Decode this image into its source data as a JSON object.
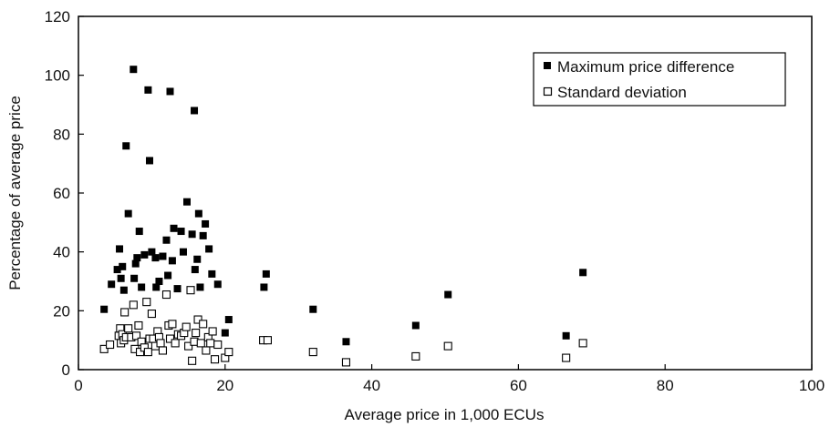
{
  "chart_data": {
    "type": "scatter",
    "xlabel": "Average price in 1,000 ECUs",
    "ylabel": "Percentage of average price",
    "xlim": [
      0,
      100
    ],
    "ylim": [
      0,
      120
    ],
    "x_ticks": [
      "0",
      "20",
      "40",
      "60",
      "80",
      "100"
    ],
    "y_ticks": [
      "0",
      "20",
      "40",
      "60",
      "80",
      "100",
      "120"
    ],
    "grid": false,
    "legend_position": "top-right",
    "series": [
      {
        "name": "Maximum price difference",
        "marker": "filled-square",
        "color": "#000000",
        "points": [
          [
            3.5,
            20.5
          ],
          [
            4.5,
            29
          ],
          [
            5.3,
            34
          ],
          [
            5.6,
            41
          ],
          [
            5.8,
            31
          ],
          [
            6,
            35
          ],
          [
            6.2,
            27
          ],
          [
            6.5,
            76
          ],
          [
            6.8,
            53
          ],
          [
            7.5,
            102
          ],
          [
            7.6,
            31
          ],
          [
            7.8,
            36
          ],
          [
            8,
            38
          ],
          [
            8.3,
            47
          ],
          [
            8.6,
            28
          ],
          [
            9,
            39
          ],
          [
            9.5,
            95
          ],
          [
            9.7,
            71
          ],
          [
            10,
            40
          ],
          [
            10.5,
            38
          ],
          [
            10.6,
            28
          ],
          [
            11,
            30
          ],
          [
            11.5,
            38.5
          ],
          [
            12,
            44
          ],
          [
            12.2,
            32
          ],
          [
            12.5,
            94.5
          ],
          [
            12.8,
            37
          ],
          [
            13,
            48
          ],
          [
            13.5,
            27.5
          ],
          [
            14,
            47
          ],
          [
            14.3,
            40
          ],
          [
            14.8,
            57
          ],
          [
            15.5,
            46
          ],
          [
            15.8,
            88
          ],
          [
            15.9,
            34
          ],
          [
            16.2,
            37.5
          ],
          [
            16.4,
            53
          ],
          [
            16.6,
            28
          ],
          [
            17,
            45.5
          ],
          [
            17.3,
            49.5
          ],
          [
            17.8,
            41
          ],
          [
            18.2,
            32.5
          ],
          [
            19,
            29
          ],
          [
            20,
            12.5
          ],
          [
            20.5,
            17
          ],
          [
            25.3,
            28
          ],
          [
            25.6,
            32.5
          ],
          [
            32,
            20.5
          ],
          [
            36.5,
            9.5
          ],
          [
            46,
            15
          ],
          [
            50.4,
            25.5
          ],
          [
            66.5,
            11.5
          ],
          [
            68.8,
            33
          ]
        ]
      },
      {
        "name": "Standard deviation",
        "marker": "open-square",
        "color": "#000000",
        "points": [
          [
            3.5,
            7
          ],
          [
            4.3,
            8.5
          ],
          [
            5.5,
            11.5
          ],
          [
            5.7,
            14
          ],
          [
            5.8,
            9
          ],
          [
            6,
            12
          ],
          [
            6.2,
            10
          ],
          [
            6.3,
            19.5
          ],
          [
            6.5,
            11
          ],
          [
            6.8,
            14
          ],
          [
            7.2,
            11
          ],
          [
            7.5,
            22
          ],
          [
            7.7,
            7
          ],
          [
            7.9,
            11.5
          ],
          [
            8.2,
            15
          ],
          [
            8.4,
            6
          ],
          [
            8.6,
            9.5
          ],
          [
            9,
            7.5
          ],
          [
            9.3,
            23
          ],
          [
            9.5,
            6
          ],
          [
            9.7,
            10.5
          ],
          [
            10,
            19
          ],
          [
            10.2,
            10.5
          ],
          [
            10.5,
            8
          ],
          [
            10.8,
            13
          ],
          [
            11,
            11
          ],
          [
            11.2,
            9
          ],
          [
            11.5,
            6.5
          ],
          [
            12,
            25.5
          ],
          [
            12.3,
            15
          ],
          [
            12.5,
            10.5
          ],
          [
            12.8,
            15.5
          ],
          [
            13.2,
            9
          ],
          [
            13.6,
            12
          ],
          [
            14,
            11.5
          ],
          [
            14.4,
            12.5
          ],
          [
            14.7,
            14.5
          ],
          [
            15,
            8
          ],
          [
            15.3,
            27
          ],
          [
            15.5,
            3
          ],
          [
            15.8,
            9.5
          ],
          [
            16,
            12.5
          ],
          [
            16.3,
            17
          ],
          [
            16.7,
            9
          ],
          [
            17,
            15.5
          ],
          [
            17.4,
            6.5
          ],
          [
            17.7,
            11
          ],
          [
            18,
            9
          ],
          [
            18.3,
            13
          ],
          [
            18.6,
            3.5
          ],
          [
            19,
            8.5
          ],
          [
            20,
            4
          ],
          [
            20.5,
            6
          ],
          [
            25.2,
            10
          ],
          [
            25.8,
            10
          ],
          [
            32,
            6
          ],
          [
            36.5,
            2.5
          ],
          [
            46,
            4.5
          ],
          [
            50.4,
            8
          ],
          [
            66.5,
            4
          ],
          [
            68.8,
            9
          ]
        ]
      }
    ]
  }
}
